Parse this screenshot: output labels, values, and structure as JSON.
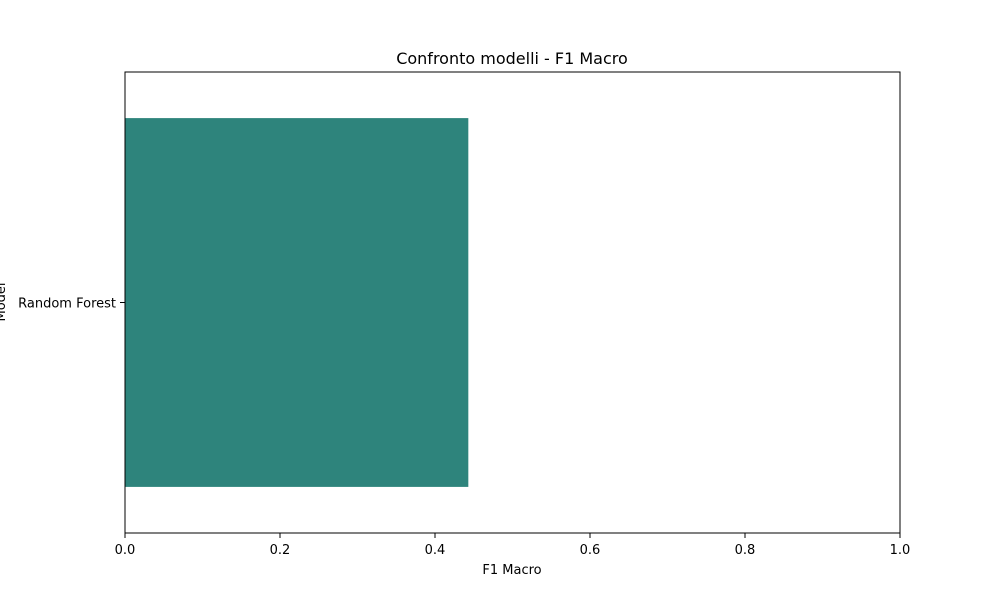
{
  "chart_data": {
    "type": "bar",
    "orientation": "horizontal",
    "title": "Confronto modelli - F1 Macro",
    "xlabel": "F1 Macro",
    "ylabel": "Model",
    "categories": [
      "Random Forest"
    ],
    "values": [
      0.443
    ],
    "xlim": [
      0.0,
      1.0
    ],
    "xticks": [
      "0.0",
      "0.2",
      "0.4",
      "0.6",
      "0.8",
      "1.0"
    ],
    "grid": false,
    "bar_color": "#2e847c"
  }
}
